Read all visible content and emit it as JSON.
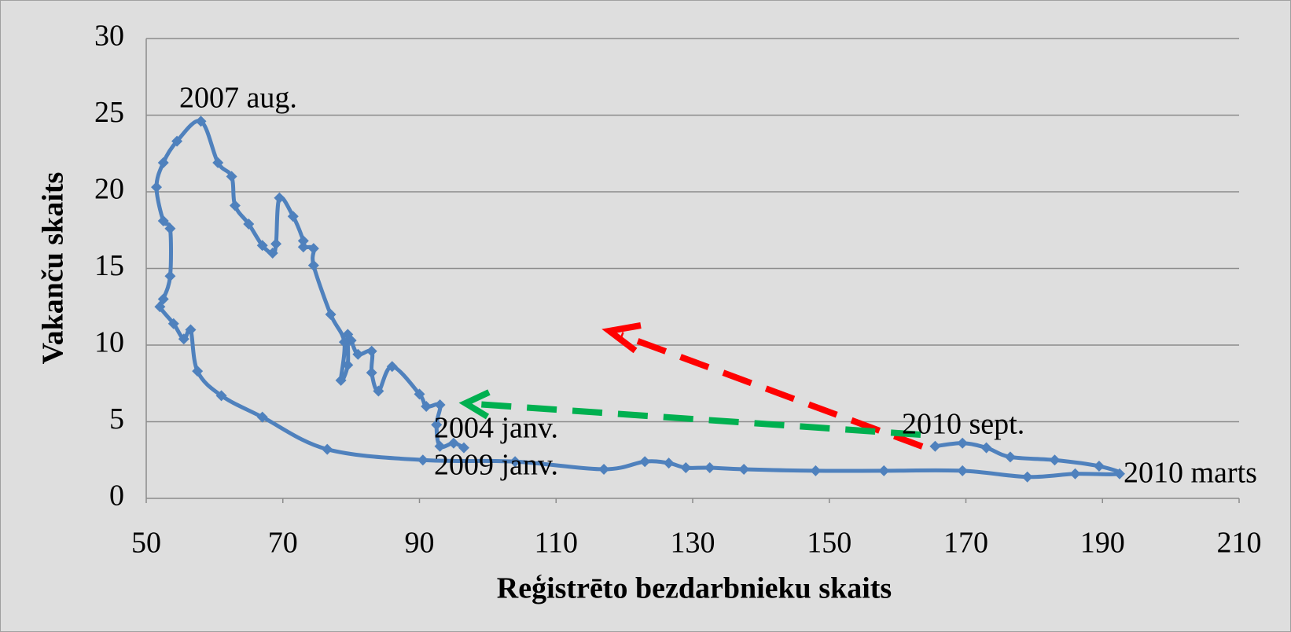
{
  "chart_data": {
    "type": "line",
    "x_label": "Reģistrēto bezdarbnieku skaits",
    "y_label": "Vakanču skaits",
    "x": [
      96.5,
      95,
      93,
      92.5,
      93,
      91,
      90,
      86,
      84,
      83,
      83,
      81,
      80,
      79.5,
      79.5,
      78.5,
      79,
      77,
      74.5,
      74.5,
      73,
      73,
      71.5,
      69.5,
      69,
      68.5,
      67,
      65,
      63,
      62.5,
      60.5,
      58,
      54.5,
      52.5,
      51.5,
      52.5,
      53.5,
      53.5,
      52.5,
      52,
      54,
      55.5,
      56.5,
      57.5,
      61,
      67,
      76.5,
      90.5,
      104,
      117,
      123,
      126.5,
      129,
      132.5,
      137.5,
      148,
      158,
      169.5,
      179,
      186,
      192.5,
      189.5,
      183,
      176.5,
      173,
      169.5,
      165.5
    ],
    "series": [
      {
        "color": "#4f81bd",
        "values": [
          3.3,
          3.6,
          3.4,
          4.8,
          6.1,
          6.0,
          6.8,
          8.6,
          7.0,
          8.2,
          9.6,
          9.4,
          10.3,
          10.7,
          8.7,
          7.7,
          10.2,
          12.0,
          15.2,
          16.3,
          16.4,
          16.8,
          18.4,
          19.6,
          16.6,
          16.0,
          16.5,
          17.9,
          19.1,
          21.0,
          21.9,
          24.6,
          23.3,
          21.9,
          20.3,
          18.1,
          17.6,
          14.5,
          13.0,
          12.5,
          11.4,
          10.4,
          11.0,
          8.3,
          6.7,
          5.3,
          3.2,
          2.5,
          2.4,
          1.9,
          2.4,
          2.3,
          2.0,
          2.0,
          1.9,
          1.8,
          1.8,
          1.8,
          1.4,
          1.6,
          1.6,
          2.1,
          2.5,
          2.7,
          3.3,
          3.6,
          3.4
        ]
      }
    ],
    "xlim": [
      50,
      210
    ],
    "xticks": [
      50,
      70,
      90,
      110,
      130,
      150,
      170,
      190,
      210
    ],
    "ylim": [
      0,
      30
    ],
    "yticks": [
      0,
      5,
      10,
      15,
      20,
      25,
      30
    ],
    "grid": true,
    "annotations": [
      "2007 aug.",
      "2004 janv.",
      "2009 janv.",
      "2010 sept.",
      "2010 marts"
    ]
  }
}
